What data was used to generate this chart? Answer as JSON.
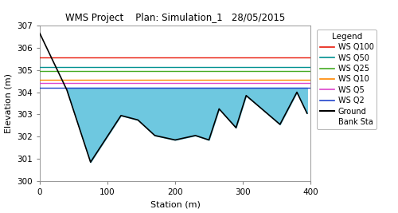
{
  "title": "WMS Project    Plan: Simulation_1   28/05/2015",
  "xlabel": "Station (m)",
  "ylabel": "Elevation (m)",
  "xlim": [
    0,
    400
  ],
  "ylim": [
    300,
    307
  ],
  "xticks": [
    0,
    100,
    200,
    300,
    400
  ],
  "yticks": [
    300,
    301,
    302,
    303,
    304,
    305,
    306,
    307
  ],
  "ground_x": [
    0,
    18,
    40,
    75,
    120,
    145,
    170,
    200,
    230,
    250,
    265,
    290,
    305,
    355,
    380,
    395
  ],
  "ground_y": [
    306.65,
    305.5,
    304.1,
    300.85,
    302.95,
    302.75,
    302.05,
    301.85,
    302.05,
    301.85,
    303.25,
    302.4,
    303.85,
    302.55,
    304.0,
    303.05
  ],
  "ws_lines": [
    {
      "label": "WS Q100",
      "y": 305.55,
      "color": "#e8190a"
    },
    {
      "label": "WS Q50",
      "y": 305.15,
      "color": "#009090"
    },
    {
      "label": "WS Q25",
      "y": 304.95,
      "color": "#44aa22"
    },
    {
      "label": "WS Q10",
      "y": 304.55,
      "color": "#ff8800"
    },
    {
      "label": "WS Q5",
      "y": 304.4,
      "color": "#dd44cc"
    },
    {
      "label": "WS Q2",
      "y": 304.2,
      "color": "#2244cc"
    }
  ],
  "fill_color": "#6EC8E0",
  "fill_alpha": 1.0,
  "ground_color": "#000000",
  "ground_linewidth": 1.2,
  "bank_sta_label": "Bank Sta",
  "ground_label": "Ground",
  "title_fontsize": 8.5,
  "axis_label_fontsize": 8,
  "tick_fontsize": 7.5,
  "legend_fontsize": 7,
  "legend_title_fontsize": 7.5
}
